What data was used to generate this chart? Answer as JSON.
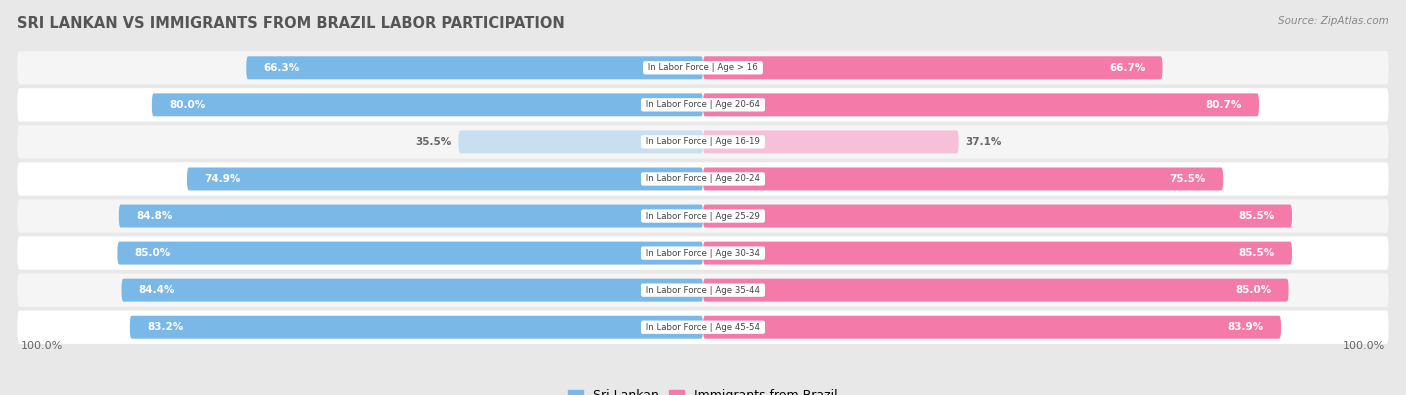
{
  "title": "SRI LANKAN VS IMMIGRANTS FROM BRAZIL LABOR PARTICIPATION",
  "source": "Source: ZipAtlas.com",
  "categories": [
    "In Labor Force | Age > 16",
    "In Labor Force | Age 20-64",
    "In Labor Force | Age 16-19",
    "In Labor Force | Age 20-24",
    "In Labor Force | Age 25-29",
    "In Labor Force | Age 30-34",
    "In Labor Force | Age 35-44",
    "In Labor Force | Age 45-54"
  ],
  "sri_lankan": [
    66.3,
    80.0,
    35.5,
    74.9,
    84.8,
    85.0,
    84.4,
    83.2
  ],
  "brazil": [
    66.7,
    80.7,
    37.1,
    75.5,
    85.5,
    85.5,
    85.0,
    83.9
  ],
  "sri_lankan_color_full": "#7ab8e8",
  "sri_lankan_color_light": "#c8dff2",
  "brazil_color_full": "#f47aaa",
  "brazil_color_light": "#f5c0d8",
  "background_color": "#e8e8e8",
  "row_colors": [
    "#f5f5f5",
    "#ffffff"
  ],
  "center_label_bg": "#ffffff",
  "legend_sri_color": "#7ab8e8",
  "legend_brazil_color": "#f47aaa",
  "title_color": "#555555",
  "source_color": "#888888",
  "value_color_dark": "#666666",
  "value_color_white": "#ffffff"
}
